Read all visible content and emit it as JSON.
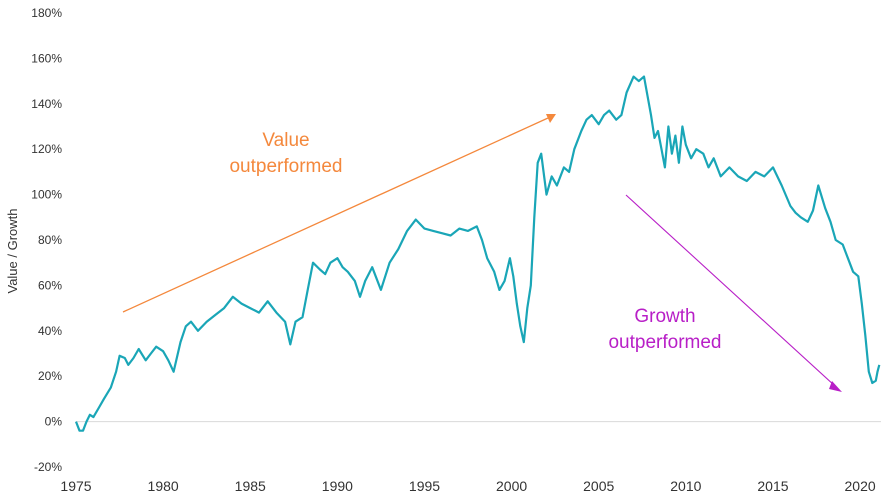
{
  "colors": {
    "series": "#1aa6b7",
    "value_annotation": "#f4883c",
    "growth_annotation": "#b81fc7",
    "zero_line": "#d9d9d9",
    "text": "#333333"
  },
  "chart_data": {
    "type": "line",
    "title": "",
    "xlabel": "",
    "ylabel": "Value / Growth",
    "xlim": [
      1975,
      2021.2
    ],
    "ylim": [
      -20,
      180
    ],
    "x_ticks": [
      1975,
      1980,
      1985,
      1990,
      1995,
      2000,
      2005,
      2010,
      2015,
      2020
    ],
    "y_ticks": [
      -20,
      0,
      20,
      40,
      60,
      80,
      100,
      120,
      140,
      160,
      180
    ],
    "y_tick_labels": [
      "-20%",
      "0%",
      "20%",
      "40%",
      "60%",
      "80%",
      "100%",
      "120%",
      "140%",
      "160%",
      "180%"
    ],
    "grid": false,
    "zero_line": true,
    "series": [
      {
        "name": "Value / Growth",
        "x": [
          1975.0,
          1975.2,
          1975.4,
          1975.6,
          1975.8,
          1976.0,
          1976.3,
          1976.6,
          1977.0,
          1977.3,
          1977.5,
          1977.8,
          1978.0,
          1978.3,
          1978.6,
          1979.0,
          1979.3,
          1979.6,
          1980.0,
          1980.3,
          1980.6,
          1981.0,
          1981.3,
          1981.6,
          1982.0,
          1982.5,
          1983.0,
          1983.5,
          1984.0,
          1984.5,
          1985.0,
          1985.5,
          1986.0,
          1986.5,
          1987.0,
          1987.3,
          1987.6,
          1988.0,
          1988.3,
          1988.6,
          1989.0,
          1989.3,
          1989.6,
          1990.0,
          1990.3,
          1990.6,
          1991.0,
          1991.3,
          1991.6,
          1992.0,
          1992.5,
          1993.0,
          1993.5,
          1994.0,
          1994.5,
          1995.0,
          1995.5,
          1996.0,
          1996.5,
          1997.0,
          1997.5,
          1998.0,
          1998.3,
          1998.6,
          1999.0,
          1999.3,
          1999.6,
          1999.9,
          2000.1,
          2000.3,
          2000.5,
          2000.7,
          2000.9,
          2001.1,
          2001.3,
          2001.5,
          2001.7,
          2002.0,
          2002.3,
          2002.6,
          2003.0,
          2003.3,
          2003.6,
          2004.0,
          2004.3,
          2004.6,
          2005.0,
          2005.3,
          2005.6,
          2006.0,
          2006.3,
          2006.6,
          2007.0,
          2007.3,
          2007.6,
          2008.0,
          2008.2,
          2008.4,
          2008.6,
          2008.8,
          2009.0,
          2009.2,
          2009.4,
          2009.6,
          2009.8,
          2010.0,
          2010.3,
          2010.6,
          2011.0,
          2011.3,
          2011.6,
          2012.0,
          2012.5,
          2013.0,
          2013.5,
          2014.0,
          2014.5,
          2015.0,
          2015.5,
          2016.0,
          2016.3,
          2016.6,
          2017.0,
          2017.3,
          2017.6,
          2018.0,
          2018.3,
          2018.6,
          2019.0,
          2019.3,
          2019.6,
          2019.9,
          2020.1,
          2020.3,
          2020.5,
          2020.7,
          2020.9,
          2021.0,
          2021.1
        ],
        "values": [
          0,
          -4,
          -4,
          0,
          3,
          2,
          6,
          10,
          15,
          22,
          29,
          28,
          25,
          28,
          32,
          27,
          30,
          33,
          31,
          27,
          22,
          35,
          42,
          44,
          40,
          44,
          47,
          50,
          55,
          52,
          50,
          48,
          53,
          48,
          44,
          34,
          44,
          46,
          58,
          70,
          67,
          65,
          70,
          72,
          68,
          66,
          62,
          55,
          62,
          68,
          58,
          70,
          76,
          84,
          89,
          85,
          84,
          83,
          82,
          85,
          84,
          86,
          80,
          72,
          66,
          58,
          62,
          72,
          64,
          52,
          42,
          35,
          50,
          60,
          90,
          114,
          118,
          100,
          108,
          104,
          112,
          110,
          120,
          128,
          133,
          135,
          131,
          135,
          137,
          133,
          135,
          145,
          152,
          150,
          152,
          135,
          125,
          128,
          120,
          112,
          130,
          118,
          126,
          114,
          130,
          122,
          116,
          120,
          118,
          112,
          116,
          108,
          112,
          108,
          106,
          110,
          108,
          112,
          104,
          95,
          92,
          90,
          88,
          93,
          104,
          94,
          88,
          80,
          78,
          72,
          66,
          64,
          52,
          38,
          22,
          17,
          18,
          22,
          25
        ]
      }
    ],
    "annotations": [
      {
        "text_lines": [
          "Value",
          "outperformed"
        ],
        "color": "value_annotation"
      },
      {
        "text_lines": [
          "Growth",
          "outperformed"
        ],
        "color": "growth_annotation"
      }
    ]
  }
}
